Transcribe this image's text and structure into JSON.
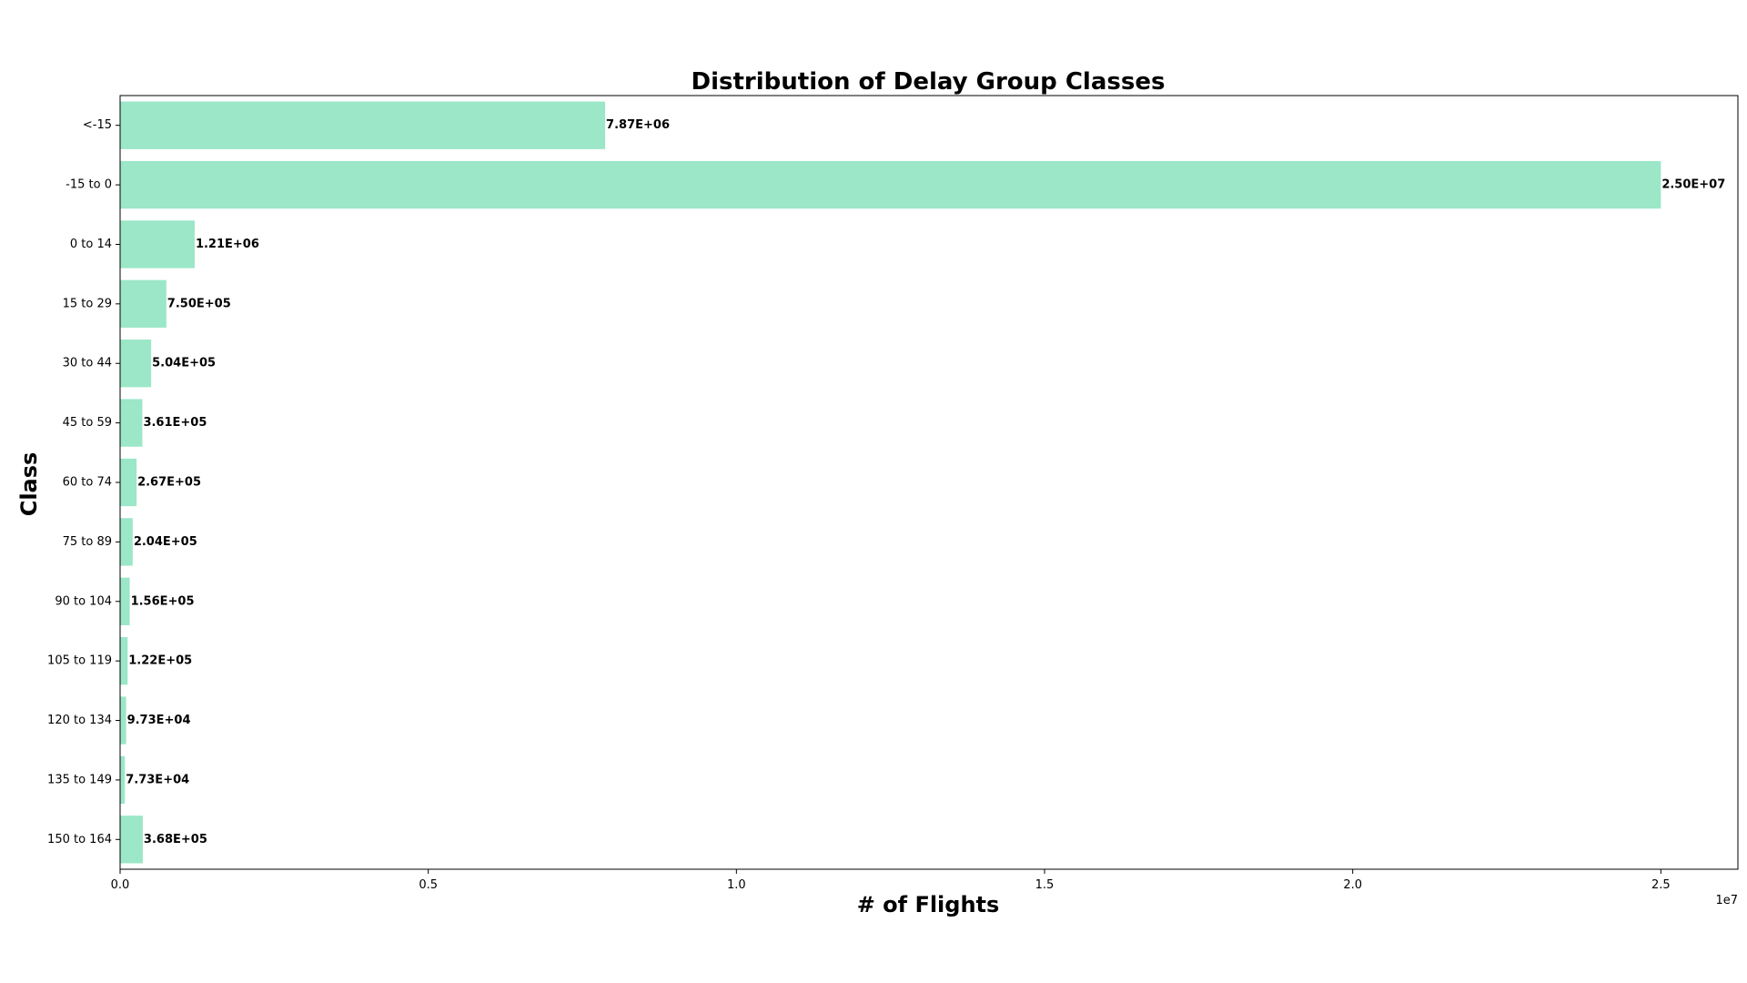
{
  "chart_data": {
    "type": "bar",
    "orientation": "horizontal",
    "title": "Distribution of Delay Group Classes",
    "xlabel": "# of Flights",
    "ylabel": "Class",
    "x_scale_label": "1e7",
    "xlim": [
      0,
      26250000
    ],
    "x_ticks": [
      0,
      5000000,
      10000000,
      15000000,
      20000000,
      25000000
    ],
    "x_tick_labels": [
      "0.0",
      "0.5",
      "1.0",
      "1.5",
      "2.0",
      "2.5"
    ],
    "bar_color": "#9be7c8",
    "categories": [
      "<-15",
      "-15 to 0",
      "0 to 14",
      "15 to 29",
      "30 to 44",
      "45 to 59",
      "60 to 74",
      "75 to 89",
      "90 to 104",
      "105 to 119",
      "120 to 134",
      "135 to 149",
      "150 to 164"
    ],
    "values": [
      7870000,
      25000000,
      1210000,
      750000,
      504000,
      361000,
      267000,
      204000,
      156000,
      122000,
      97300,
      77300,
      368000
    ],
    "value_labels": [
      "7.87E+06",
      "2.50E+07",
      "1.21E+06",
      "7.50E+05",
      "5.04E+05",
      "3.61E+05",
      "2.67E+05",
      "2.04E+05",
      "1.56E+05",
      "1.22E+05",
      "9.73E+04",
      "7.73E+04",
      "3.68E+05"
    ]
  }
}
